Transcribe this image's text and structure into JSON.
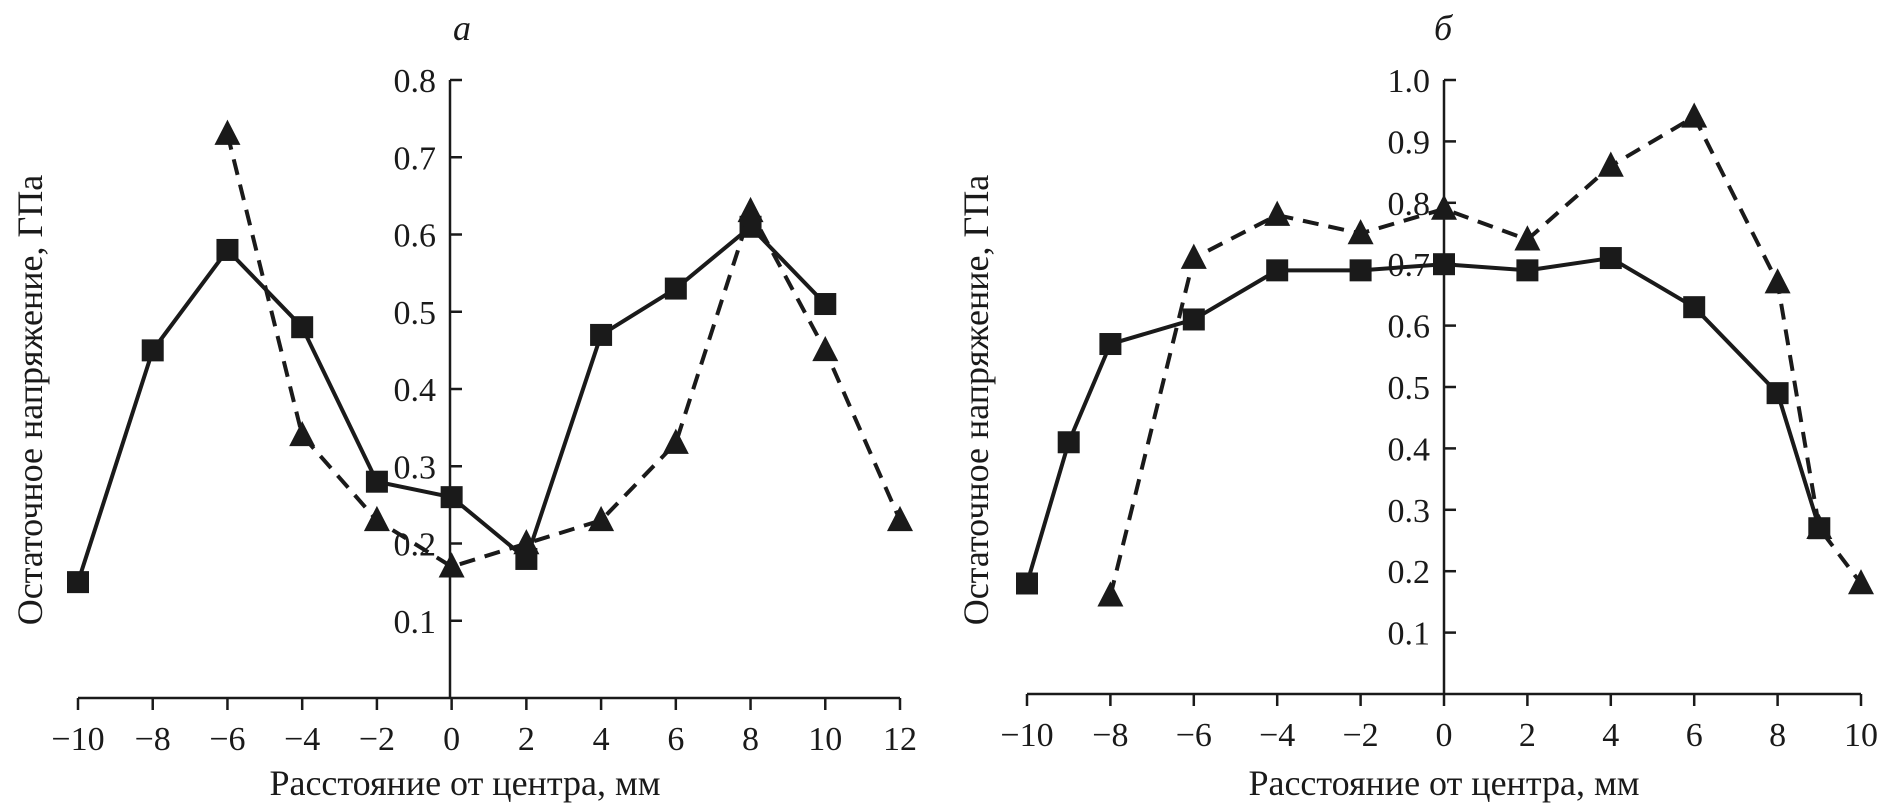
{
  "chart_data": [
    {
      "type": "line",
      "title": "а",
      "xlabel": "Расстояние от центра, мм",
      "ylabel": "Остаточное напряжение, ГПа",
      "xlim": [
        -10,
        12
      ],
      "ylim": [
        0.0,
        0.8
      ],
      "xticks": [
        -10,
        -8,
        -6,
        -4,
        -2,
        0,
        2,
        4,
        6,
        8,
        10,
        12
      ],
      "xtick_labels": [
        "−10",
        "−8",
        "−6",
        "−4",
        "−2",
        "0",
        "2",
        "4",
        "6",
        "8",
        "10",
        "12"
      ],
      "yticks": [
        0.1,
        0.2,
        0.3,
        0.4,
        0.5,
        0.6,
        0.7,
        0.8
      ],
      "ytick_labels": [
        "0.1",
        "0.2",
        "0.3",
        "0.4",
        "0.5",
        "0.6",
        "0.7",
        "0.8"
      ],
      "grid": false,
      "series": [
        {
          "name": "squares-solid",
          "marker": "square",
          "line": "solid",
          "x": [
            -10,
            -8,
            -6,
            -4,
            -2,
            0,
            2,
            4,
            6,
            8,
            10
          ],
          "y": [
            0.15,
            0.45,
            0.58,
            0.48,
            0.28,
            0.26,
            0.18,
            0.47,
            0.53,
            0.61,
            0.51
          ]
        },
        {
          "name": "triangles-dashed",
          "marker": "triangle",
          "line": "dashed",
          "x": [
            -6,
            -4,
            -2,
            0,
            2,
            4,
            6,
            8,
            10,
            12
          ],
          "y": [
            0.73,
            0.34,
            0.23,
            0.17,
            0.2,
            0.23,
            0.33,
            0.63,
            0.45,
            0.23
          ]
        }
      ]
    },
    {
      "type": "line",
      "title": "б",
      "xlabel": "Расстояние от центра, мм",
      "ylabel": "Остаточное напряжение, ГПа",
      "xlim": [
        -10,
        10
      ],
      "ylim": [
        0.0,
        1.0
      ],
      "xticks": [
        -10,
        -8,
        -6,
        -4,
        -2,
        0,
        2,
        4,
        6,
        8,
        10
      ],
      "xtick_labels": [
        "−10",
        "−8",
        "−6",
        "−4",
        "−2",
        "0",
        "2",
        "4",
        "6",
        "8",
        "10"
      ],
      "yticks": [
        0.1,
        0.2,
        0.3,
        0.4,
        0.5,
        0.6,
        0.7,
        0.8,
        0.9,
        1.0
      ],
      "ytick_labels": [
        "0.1",
        "0.2",
        "0.3",
        "0.4",
        "0.5",
        "0.6",
        "0.7",
        "0.8",
        "0.9",
        "1.0"
      ],
      "grid": false,
      "series": [
        {
          "name": "squares-solid",
          "marker": "square",
          "line": "solid",
          "x": [
            -10,
            -9,
            -8,
            -6,
            -4,
            -2,
            0,
            2,
            4,
            6,
            8,
            9
          ],
          "y": [
            0.18,
            0.41,
            0.57,
            0.61,
            0.69,
            0.69,
            0.7,
            0.69,
            0.71,
            0.63,
            0.49,
            0.27
          ]
        },
        {
          "name": "triangles-dashed",
          "marker": "triangle",
          "line": "dashed",
          "x": [
            -8,
            -6,
            -4,
            -2,
            0,
            2,
            4,
            6,
            8,
            9,
            10
          ],
          "y": [
            0.16,
            0.71,
            0.78,
            0.75,
            0.79,
            0.74,
            0.86,
            0.94,
            0.67,
            0.27,
            0.18
          ]
        }
      ]
    }
  ]
}
